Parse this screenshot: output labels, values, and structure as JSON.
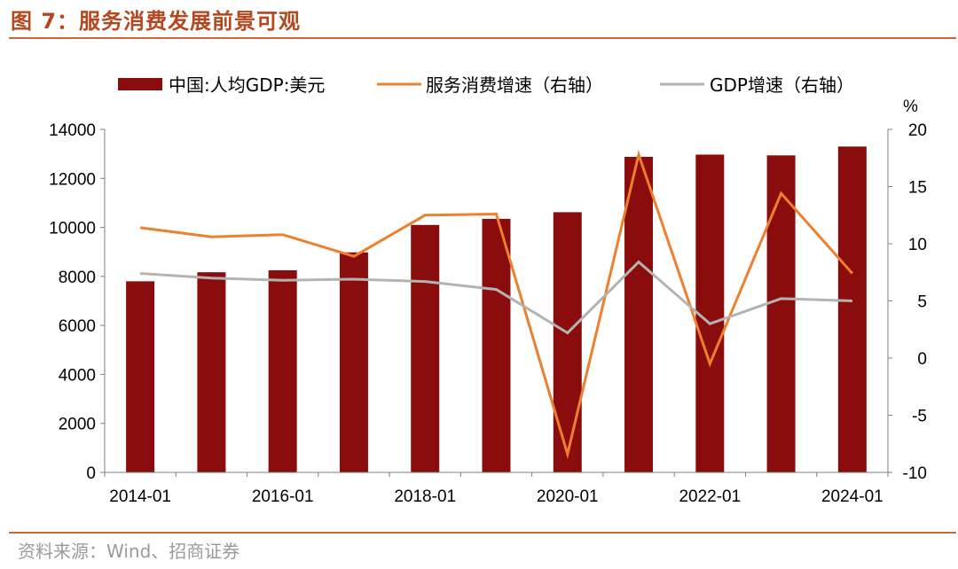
{
  "figure": {
    "title": "图 7：服务消费发展前景可观",
    "source": "资料来源：Wind、招商证券"
  },
  "colors": {
    "bar": "#8b0c0c",
    "orange": "#ee7f2d",
    "gray": "#b3b3b3",
    "accent": "#c8673a"
  },
  "chart_data": {
    "type": "bar",
    "categories": [
      "2014-01",
      "2015-01",
      "2016-01",
      "2017-01",
      "2018-01",
      "2019-01",
      "2020-01",
      "2021-01",
      "2022-01",
      "2023-01",
      "2024-01"
    ],
    "x_tick_labels": [
      "2014-01",
      "2016-01",
      "2018-01",
      "2020-01",
      "2022-01",
      "2024-01"
    ],
    "series": [
      {
        "name": "中国:人均GDP:美元",
        "kind": "bar",
        "axis": "left",
        "values": [
          7800,
          8170,
          8250,
          8980,
          10100,
          10350,
          10620,
          12880,
          12970,
          12940,
          13300
        ]
      },
      {
        "name": "服务消费增速（右轴）",
        "kind": "line",
        "axis": "right",
        "values": [
          11.4,
          10.6,
          10.8,
          8.9,
          12.5,
          12.6,
          -8.4,
          17.8,
          -0.5,
          14.4,
          7.4
        ]
      },
      {
        "name": "GDP增速（右轴）",
        "kind": "line",
        "axis": "right",
        "values": [
          7.4,
          7.0,
          6.8,
          6.9,
          6.7,
          6.0,
          2.2,
          8.4,
          3.0,
          5.2,
          5.0
        ]
      }
    ],
    "ylim_left": [
      0,
      14000
    ],
    "yticks_left": [
      0,
      2000,
      4000,
      6000,
      8000,
      10000,
      12000,
      14000
    ],
    "ylim_right": [
      -10,
      20
    ],
    "yticks_right": [
      -10,
      -5,
      0,
      5,
      10,
      15,
      20
    ],
    "ylabel_right": "%",
    "legend_position": "top"
  }
}
